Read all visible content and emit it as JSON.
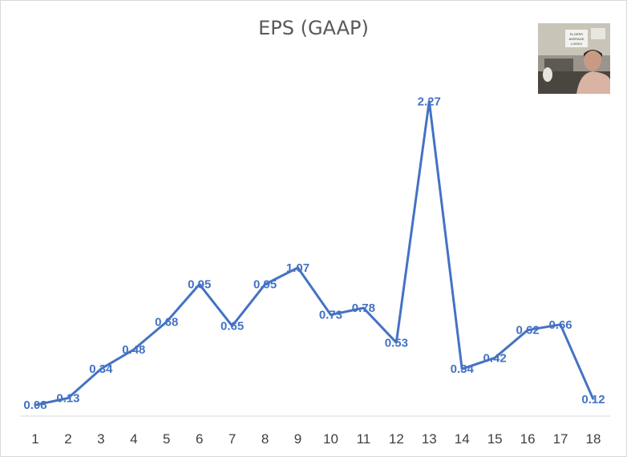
{
  "chart_data": {
    "type": "line",
    "title": "EPS (GAAP)",
    "xlabel": "",
    "ylabel": "",
    "categories": [
      "1",
      "2",
      "3",
      "4",
      "5",
      "6",
      "7",
      "8",
      "9",
      "10",
      "11",
      "12",
      "13",
      "14",
      "15",
      "16",
      "17",
      "18"
    ],
    "series": [
      {
        "values": [
          0.08,
          0.13,
          0.34,
          0.48,
          0.68,
          0.95,
          0.65,
          0.95,
          1.07,
          0.73,
          0.78,
          0.53,
          2.27,
          0.34,
          0.42,
          0.62,
          0.66,
          0.12
        ],
        "labels": [
          "0.08",
          "0.13",
          "0.34",
          "0.48",
          "0.68",
          "0.95",
          "0.65",
          "0.95",
          "1.07",
          "0.73",
          "0.78",
          "0.53",
          "2.27",
          "0.34",
          "0.42",
          "0.62",
          "0.66",
          "0.12"
        ],
        "color": "#4472c4"
      }
    ],
    "ylim": [
      0,
      2.4
    ],
    "grid": false,
    "legend": "none",
    "y_axis_shown": false,
    "data_labels": true
  },
  "thumbnail": {
    "content": "webcam photo",
    "note_lines": [
      "ELGERS",
      "AVERAGE",
      "LOOKS"
    ]
  }
}
